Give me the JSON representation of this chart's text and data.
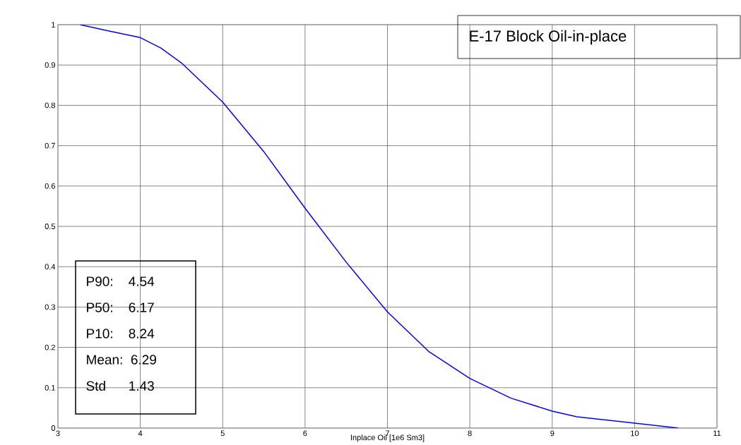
{
  "chart_data": {
    "type": "line",
    "title": "E-17 Block Oil-in-place",
    "xlabel": "Inplace Oil [1e6 Sm3]",
    "x": [
      3.27,
      3.6,
      4,
      4.25,
      4.5,
      5,
      5.5,
      6,
      6.5,
      7,
      7.5,
      8,
      8.5,
      9,
      9.3,
      10,
      10.53
    ],
    "series": [
      {
        "color": "#0000ff",
        "values": [
          1.0,
          0.985,
          0.968,
          0.942,
          0.905,
          0.808,
          0.685,
          0.545,
          0.411,
          0.288,
          0.19,
          0.123,
          0.074,
          0.042,
          0.028,
          0.012,
          0.0
        ]
      }
    ],
    "xlim": [
      3,
      11
    ],
    "ylim": [
      0,
      1
    ],
    "xticks": [
      3,
      4,
      5,
      6,
      7,
      8,
      9,
      10,
      11
    ],
    "yticks": [
      0,
      0.1,
      0.2,
      0.3,
      0.4,
      0.5,
      0.6,
      0.7,
      0.8,
      0.9,
      1
    ],
    "grid": true,
    "marker": "none",
    "line_style": "solid",
    "annotations": [
      "P90:    4.54",
      "P50:    6.17",
      "P10:    8.24",
      "Mean:  6.29",
      "Std      1.43"
    ]
  }
}
